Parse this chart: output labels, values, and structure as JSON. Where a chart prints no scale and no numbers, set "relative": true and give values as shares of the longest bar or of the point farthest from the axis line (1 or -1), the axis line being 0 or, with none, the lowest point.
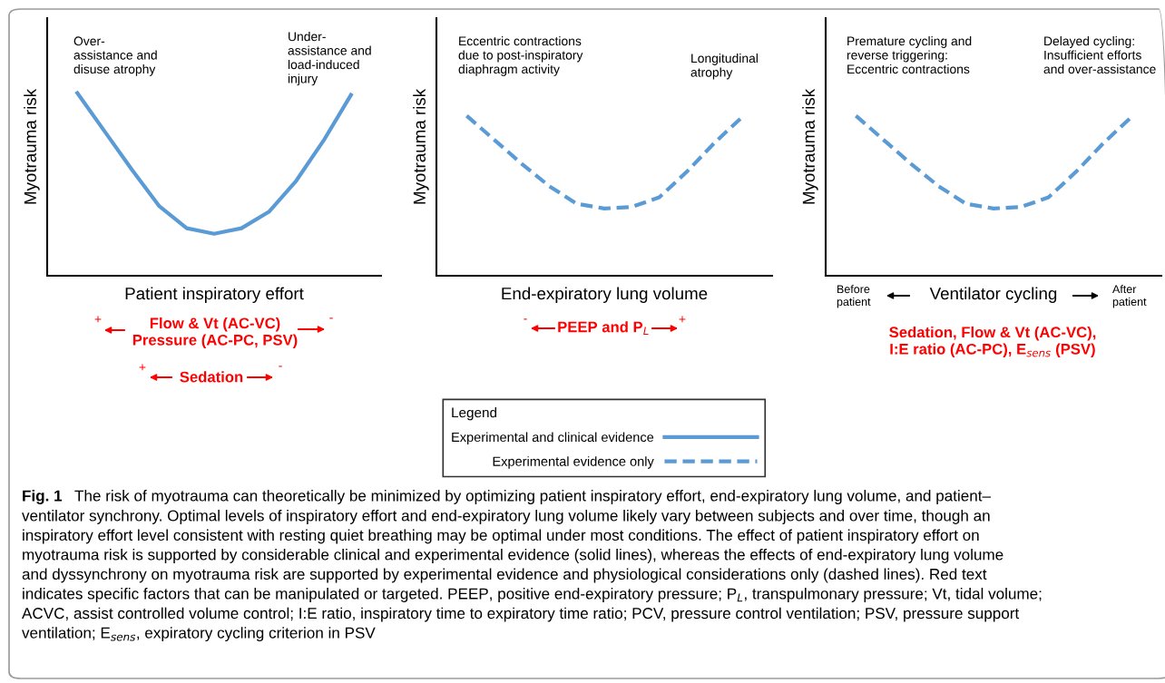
{
  "chart_data": [
    {
      "type": "line",
      "relative": true,
      "xlabel": "Patient inspiratory effort",
      "ylabel": "Myotrauma risk",
      "categories": [
        null,
        null,
        null,
        null,
        null,
        null,
        null,
        null,
        null,
        null,
        null
      ],
      "tick_labels": false,
      "grid": false,
      "legend": false,
      "series": [
        {
          "name": "Experimental and clinical evidence",
          "color": "#5b9bd5",
          "line_style": "solid",
          "values": [
            1,
            0.79,
            0.58,
            0.38,
            0.26,
            0.23,
            0.26,
            0.35,
            0.52,
            0.74,
            0.99
          ]
        }
      ],
      "annotations": [
        "Over-\nassistance and\ndisuse atrophy",
        "Under-\nassistance and\nload-induced\ninjury",
        "Flow & Vt (AC-VC)\nPressure (AC-PC, PSV)",
        "+",
        "-",
        "Sedation",
        "+",
        "-"
      ]
    },
    {
      "type": "line",
      "relative": true,
      "xlabel": "End-expiratory lung volume",
      "ylabel": "Myotrauma risk",
      "categories": [
        null,
        null,
        null,
        null,
        null,
        null,
        null,
        null,
        null,
        null,
        null
      ],
      "tick_labels": false,
      "grid": false,
      "legend": "bottom",
      "legend_title": "Legend",
      "series": [
        {
          "name": "Experimental evidence only",
          "color": "#5b9bd5",
          "line_style": "dashed",
          "values": [
            1,
            0.85,
            0.7,
            0.56,
            0.45,
            0.42,
            0.43,
            0.49,
            0.65,
            0.83,
            0.99
          ]
        }
      ],
      "annotations": [
        "Eccentric contractions\ndue to post-inspiratory\ndiaphragm activity",
        "Longitudinal\natrophy",
        "PEEP and P$_{L}$",
        "-",
        "+"
      ]
    },
    {
      "type": "line",
      "relative": true,
      "xlabel": "Ventilator cycling",
      "ylabel": "Myotrauma risk",
      "categories": [
        null,
        null,
        null,
        null,
        null,
        null,
        null,
        null,
        null,
        null,
        null
      ],
      "tick_labels": false,
      "grid": false,
      "legend": false,
      "series": [
        {
          "color": "#5b9bd5",
          "line_style": "dashed",
          "values": [
            1,
            0.85,
            0.7,
            0.56,
            0.45,
            0.42,
            0.43,
            0.49,
            0.65,
            0.83,
            0.99
          ]
        }
      ],
      "annotations": [
        "Premature cycling and\nreverse triggering:\nEccentric contractions",
        "Delayed cycling:\nInsufficient efforts\nand over-assistance",
        "Before\npatient",
        "After\npatient",
        "Sedation, Flow & Vt (AC-VC),\nI:E ratio (AC-PC), E$_{sens}$ (PSV)",
        "Fig. 1",
        "The risk of myotrauma can theoretically be minimized by optimizing patient inspiratory effort, end-expiratory lung volume, and patient–",
        "ventilator synchrony. Optimal levels of inspiratory effort and end-expiratory lung volume likely vary between subjects and over time, though an\ninspiratory effort level consistent with resting quiet breathing may be optimal under most conditions. The effect of patient inspiratory effort on\nmyotrauma risk is supported by considerable clinical and experimental evidence (solid lines), whereas the effects of end-expiratory lung volume\nand dyssynchrony on myotrauma risk are supported by experimental evidence and physiological considerations only (dashed lines). Red text\nindicates specific factors that can be manipulated or targeted. PEEP, positive end-expiratory pressure; P$_{L}$, transpulmonary pressure; Vt, tidal volume;\nACVC, assist controlled volume control; I:E ratio, inspiratory time to expiratory time ratio; PCV, pressure control ventilation; PSV, pressure support\nventilation; E$_{sens}$, expiratory cycling criterion in PSV"
      ]
    }
  ]
}
